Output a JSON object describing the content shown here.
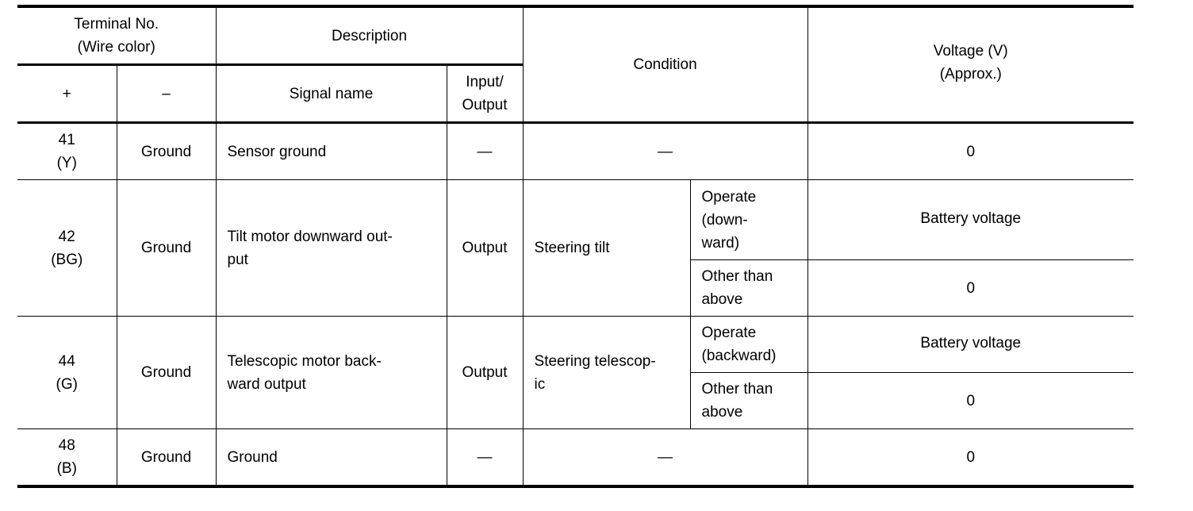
{
  "header": {
    "terminal": "Terminal No.\n(Wire color)",
    "terminal_lines": [
      "Terminal No.",
      "(Wire color)"
    ],
    "plus": "+",
    "minus": "–",
    "description": "Description",
    "signal_name": "Signal name",
    "io_lines": [
      "Input/",
      "Output"
    ],
    "condition": "Condition",
    "voltage_lines": [
      "Voltage (V)",
      "(Approx.)"
    ]
  },
  "rows": [
    {
      "plus": [
        "41",
        "(Y)"
      ],
      "minus": "Ground",
      "signal": "Sensor ground",
      "io": "—",
      "condition": "—",
      "voltage": "0"
    },
    {
      "plus": [
        "42",
        "(BG)"
      ],
      "minus": "Ground",
      "signal": [
        "Tilt motor downward out-",
        "put"
      ],
      "io": "Output",
      "condition": "Steering tilt",
      "sub": [
        {
          "state": [
            "Operate",
            "(down-",
            "ward)"
          ],
          "voltage": "Battery voltage"
        },
        {
          "state": [
            "Other than",
            "above"
          ],
          "voltage": "0"
        }
      ]
    },
    {
      "plus": [
        "44",
        "(G)"
      ],
      "minus": "Ground",
      "signal": [
        "Telescopic motor back-",
        "ward output"
      ],
      "io": "Output",
      "condition": [
        "Steering telescop-",
        "ic"
      ],
      "sub": [
        {
          "state": [
            "Operate",
            "(backward)"
          ],
          "voltage": "Battery voltage"
        },
        {
          "state": [
            "Other than",
            "above"
          ],
          "voltage": "0"
        }
      ]
    },
    {
      "plus": [
        "48",
        "(B)"
      ],
      "minus": "Ground",
      "signal": "Ground",
      "io": "—",
      "condition": "—",
      "voltage": "0"
    }
  ]
}
